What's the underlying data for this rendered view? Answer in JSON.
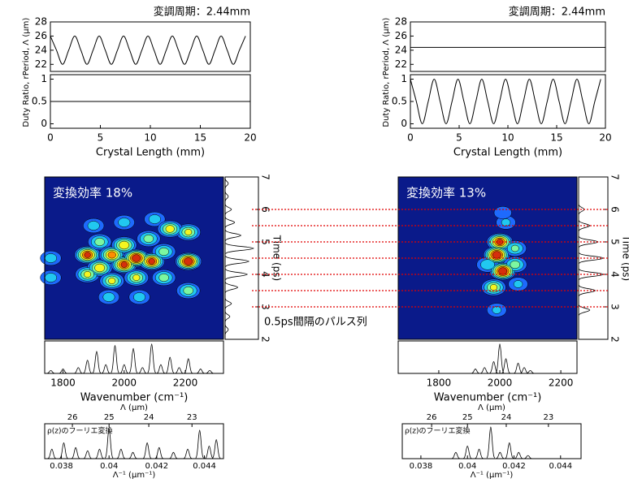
{
  "annotation": "0.5ps間隔のパルス列",
  "chart_data": [
    {
      "type": "line",
      "title": "変調周期：2.44mm",
      "ylabel": "Period, Λ (μm)",
      "xlim": [
        0,
        20
      ],
      "ylim": [
        21,
        28
      ],
      "yticks": [
        22,
        24,
        26,
        28
      ],
      "x": [
        0,
        0.61,
        1.22,
        1.83,
        2.44,
        3.05,
        3.66,
        4.27,
        4.88,
        5.49,
        6.1,
        6.71,
        7.32,
        7.93,
        8.54,
        9.15,
        9.76,
        10.37,
        10.98,
        11.59,
        12.2,
        12.81,
        13.42,
        14.03,
        14.64,
        15.25,
        15.86,
        16.47,
        17.08,
        17.69,
        18.3,
        18.91,
        19.52
      ],
      "series": [
        {
          "color": "#000000",
          "values": [
            26,
            24,
            22,
            24,
            26,
            24,
            22,
            24,
            26,
            24,
            22,
            24,
            26,
            24,
            22,
            24,
            26,
            24,
            22,
            24,
            26,
            24,
            22,
            24,
            26,
            24,
            22,
            24,
            26,
            24,
            22,
            24,
            26
          ]
        }
      ]
    },
    {
      "type": "line",
      "ylabel": "Duty Ratio, r",
      "xlabel": "Crystal Length (mm)",
      "xlim": [
        0,
        20
      ],
      "xticks": [
        0,
        5,
        10,
        15,
        20
      ],
      "ylim": [
        -0.1,
        1.1
      ],
      "yticks": [
        0,
        0.5,
        1
      ],
      "x": [
        0,
        20
      ],
      "series": [
        {
          "color": "#000000",
          "values": [
            0.5,
            0.5
          ]
        }
      ]
    },
    {
      "type": "heatmap",
      "annotation": "変換効率 18%",
      "xlim": [
        1740,
        2325
      ],
      "ylim": [
        2,
        7
      ],
      "x": [
        1760,
        1760,
        1880,
        1880,
        1920,
        1920,
        1960,
        1960,
        2000,
        2000,
        2040,
        2040,
        2080,
        2090,
        2130,
        2130,
        2210,
        2210,
        2210,
        1900,
        2000,
        2100,
        1950,
        2050,
        2150
      ],
      "y": [
        4.5,
        3.9,
        4.6,
        4.0,
        5.0,
        4.2,
        4.6,
        3.8,
        4.9,
        4.3,
        4.5,
        3.9,
        5.1,
        4.4,
        4.7,
        3.9,
        4.4,
        5.3,
        3.5,
        5.5,
        5.6,
        5.7,
        3.3,
        3.3,
        5.4
      ],
      "values": [
        0.35,
        0.35,
        0.9,
        0.6,
        0.5,
        0.7,
        0.8,
        0.6,
        0.7,
        0.9,
        1.0,
        0.6,
        0.5,
        0.9,
        0.5,
        0.5,
        1.0,
        0.6,
        0.5,
        0.35,
        0.35,
        0.35,
        0.35,
        0.35,
        0.65
      ]
    },
    {
      "type": "peaks",
      "orientation": "horizontal",
      "ylabel": "Time (ps)",
      "xlim": [
        0,
        1.05
      ],
      "ylim": [
        2,
        7
      ],
      "yticks": [
        2,
        3,
        4,
        5,
        6,
        7
      ],
      "x": [
        2.3,
        2.7,
        3.1,
        3.6,
        4.0,
        4.4,
        4.8,
        5.2,
        5.6,
        6.0,
        6.4,
        6.8
      ],
      "values": [
        0.1,
        0.15,
        0.2,
        0.4,
        0.7,
        0.75,
        0.9,
        0.5,
        0.3,
        0.2,
        0.1,
        0.1
      ]
    },
    {
      "type": "peaks",
      "xlabel": "Wavenumber (cm⁻¹)",
      "xlim": [
        1740,
        2325
      ],
      "xticks": [
        1800,
        2000,
        2200
      ],
      "ylim": [
        0,
        1.1
      ],
      "x": [
        1760,
        1800,
        1850,
        1880,
        1910,
        1940,
        1970,
        2000,
        2030,
        2060,
        2090,
        2120,
        2150,
        2180,
        2210,
        2250,
        2280
      ],
      "values": [
        0.1,
        0.15,
        0.2,
        0.45,
        0.75,
        0.3,
        0.95,
        0.3,
        0.85,
        0.2,
        1.0,
        0.3,
        0.55,
        0.2,
        0.5,
        0.15,
        0.1
      ]
    },
    {
      "type": "peaks",
      "annotation": "ρ(z)のフーリエ変換",
      "xlabel": "Λ⁻¹ (μm⁻¹)",
      "x2label": "Λ (μm)",
      "x2scale": "reciprocal",
      "xlim": [
        0.0373,
        0.0448
      ],
      "xticks": [
        0.038,
        0.04,
        0.042,
        0.044
      ],
      "x2ticks": [
        26,
        25,
        24,
        23
      ],
      "ylim": [
        0,
        1.1
      ],
      "x": [
        0.0376,
        0.0381,
        0.0386,
        0.0391,
        0.0396,
        0.04,
        0.0405,
        0.041,
        0.0416,
        0.0421,
        0.0427,
        0.0433,
        0.0438,
        0.0442,
        0.0445
      ],
      "values": [
        0.3,
        0.5,
        0.35,
        0.25,
        0.3,
        0.95,
        0.3,
        0.2,
        0.5,
        0.35,
        0.2,
        0.3,
        0.9,
        0.4,
        0.6
      ]
    },
    {
      "type": "line",
      "title": "変調周期：2.44mm",
      "ylabel": "Period, Λ (μm)",
      "xlim": [
        0,
        20
      ],
      "ylim": [
        21,
        28
      ],
      "yticks": [
        22,
        24,
        26,
        28
      ],
      "x": [
        0,
        20
      ],
      "series": [
        {
          "color": "#000000",
          "values": [
            24.4,
            24.4
          ]
        }
      ]
    },
    {
      "type": "line",
      "ylabel": "Duty Ratio, r",
      "xlabel": "Crystal Length (mm)",
      "xlim": [
        0,
        20
      ],
      "xticks": [
        0,
        5,
        10,
        15,
        20
      ],
      "ylim": [
        -0.1,
        1.1
      ],
      "yticks": [
        0,
        0.5,
        1
      ],
      "x": [
        0,
        0.61,
        1.22,
        1.83,
        2.44,
        3.05,
        3.66,
        4.27,
        4.88,
        5.49,
        6.1,
        6.71,
        7.32,
        7.93,
        8.54,
        9.15,
        9.76,
        10.37,
        10.98,
        11.59,
        12.2,
        12.81,
        13.42,
        14.03,
        14.64,
        15.25,
        15.86,
        16.47,
        17.08,
        17.69,
        18.3,
        18.91,
        19.52
      ],
      "series": [
        {
          "color": "#000000",
          "values": [
            1,
            0.5,
            0,
            0.5,
            1,
            0.5,
            0,
            0.5,
            1,
            0.5,
            0,
            0.5,
            1,
            0.5,
            0,
            0.5,
            1,
            0.5,
            0,
            0.5,
            1,
            0.5,
            0,
            0.5,
            1,
            0.5,
            0,
            0.5,
            1,
            0.5,
            0,
            0.5,
            1
          ]
        }
      ]
    },
    {
      "type": "heatmap",
      "annotation": "変換効率 13%",
      "xlim": [
        1667,
        2253
      ],
      "ylim": [
        2,
        7
      ],
      "x": [
        2000,
        1990,
        2010,
        1980,
        1990,
        2020,
        2010,
        2050,
        2050,
        1960,
        2060
      ],
      "y": [
        5.0,
        4.6,
        4.1,
        3.6,
        2.9,
        5.6,
        5.9,
        4.3,
        4.8,
        4.3,
        3.7
      ],
      "values": [
        0.9,
        1.0,
        1.0,
        0.6,
        0.3,
        0.3,
        0.25,
        0.5,
        0.45,
        0.4,
        0.3
      ]
    },
    {
      "type": "peaks",
      "orientation": "horizontal",
      "ylabel": "Time (ps)",
      "xlim": [
        0,
        1.05
      ],
      "ylim": [
        2,
        7
      ],
      "yticks": [
        2,
        3,
        4,
        5,
        6,
        7
      ],
      "x": [
        2.9,
        3.5,
        4.0,
        4.5,
        5.0,
        5.5,
        6.0
      ],
      "values": [
        0.4,
        0.6,
        0.9,
        0.9,
        0.7,
        0.4,
        0.2
      ],
      "hlines": [
        3,
        3.5,
        4,
        4.5,
        5,
        5.5,
        6
      ],
      "hline_color": "#e00000"
    },
    {
      "type": "peaks",
      "xlabel": "Wavenumber (cm⁻¹)",
      "xlim": [
        1667,
        2253
      ],
      "xticks": [
        1800,
        2000,
        2200
      ],
      "ylim": [
        0,
        1.1
      ],
      "x": [
        1920,
        1950,
        1980,
        2000,
        2020,
        2060,
        2080,
        2100
      ],
      "values": [
        0.15,
        0.2,
        0.4,
        1.0,
        0.5,
        0.35,
        0.2,
        0.1
      ]
    },
    {
      "type": "peaks",
      "annotation": "ρ(z)のフーリエ変換",
      "xlabel": "Λ⁻¹ (μm⁻¹)",
      "x2label": "Λ (μm)",
      "x2scale": "reciprocal",
      "xlim": [
        0.0372,
        0.04488
      ],
      "xticks": [
        0.038,
        0.04,
        0.042,
        0.044
      ],
      "x2ticks": [
        26,
        25,
        24,
        23
      ],
      "ylim": [
        0,
        1.1
      ],
      "x": [
        0.0395,
        0.04,
        0.0405,
        0.041,
        0.0414,
        0.0418,
        0.0422,
        0.0426
      ],
      "values": [
        0.2,
        0.4,
        0.3,
        1.0,
        0.2,
        0.5,
        0.2,
        0.1
      ]
    }
  ]
}
